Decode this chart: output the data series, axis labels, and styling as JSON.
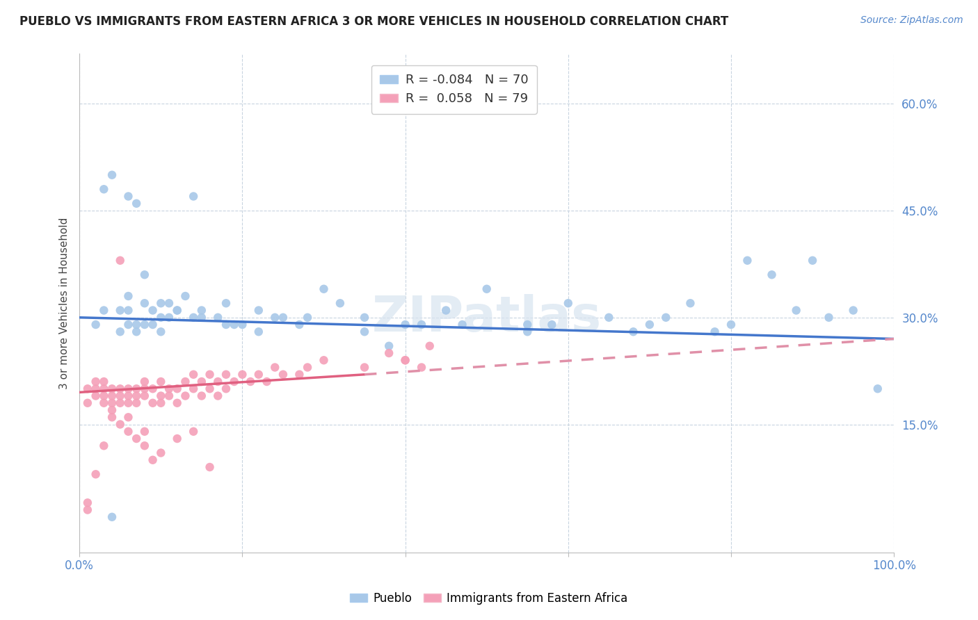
{
  "title": "PUEBLO VS IMMIGRANTS FROM EASTERN AFRICA 3 OR MORE VEHICLES IN HOUSEHOLD CORRELATION CHART",
  "source": "Source: ZipAtlas.com",
  "ylabel": "3 or more Vehicles in Household",
  "ytick_vals": [
    0.15,
    0.3,
    0.45,
    0.6
  ],
  "ytick_labels": [
    "15.0%",
    "30.0%",
    "45.0%",
    "60.0%"
  ],
  "pueblo_color": "#a8c8e8",
  "immigrant_color": "#f4a0b8",
  "pueblo_line_color": "#4477cc",
  "immigrant_line_solid_color": "#e06080",
  "immigrant_line_dash_color": "#e090a8",
  "watermark_text": "ZIPatlas",
  "pueblo_legend": "R = -0.084   N = 70",
  "immigrant_legend": "R =  0.058   N = 79",
  "pueblo_scatter_x": [
    0.02,
    0.04,
    0.05,
    0.05,
    0.06,
    0.06,
    0.07,
    0.07,
    0.08,
    0.08,
    0.09,
    0.09,
    0.1,
    0.1,
    0.11,
    0.11,
    0.12,
    0.13,
    0.14,
    0.15,
    0.15,
    0.17,
    0.18,
    0.19,
    0.2,
    0.22,
    0.22,
    0.24,
    0.25,
    0.27,
    0.28,
    0.3,
    0.32,
    0.35,
    0.38,
    0.4,
    0.42,
    0.45,
    0.5,
    0.55,
    0.58,
    0.6,
    0.65,
    0.68,
    0.7,
    0.72,
    0.75,
    0.78,
    0.8,
    0.82,
    0.85,
    0.88,
    0.9,
    0.92,
    0.95,
    0.98,
    0.04,
    0.06,
    0.47,
    0.1,
    0.12,
    0.18,
    0.03,
    0.07,
    0.14,
    0.55,
    0.03,
    0.06,
    0.08,
    0.35
  ],
  "pueblo_scatter_y": [
    0.29,
    0.5,
    0.28,
    0.31,
    0.29,
    0.31,
    0.28,
    0.29,
    0.29,
    0.32,
    0.29,
    0.31,
    0.3,
    0.32,
    0.3,
    0.32,
    0.31,
    0.33,
    0.3,
    0.3,
    0.31,
    0.3,
    0.29,
    0.29,
    0.29,
    0.31,
    0.28,
    0.3,
    0.3,
    0.29,
    0.3,
    0.34,
    0.32,
    0.3,
    0.26,
    0.29,
    0.29,
    0.31,
    0.34,
    0.28,
    0.29,
    0.32,
    0.3,
    0.28,
    0.29,
    0.3,
    0.32,
    0.28,
    0.29,
    0.38,
    0.36,
    0.31,
    0.38,
    0.3,
    0.31,
    0.2,
    0.02,
    0.47,
    0.29,
    0.28,
    0.31,
    0.32,
    0.48,
    0.46,
    0.47,
    0.29,
    0.31,
    0.33,
    0.36,
    0.28
  ],
  "immigrant_scatter_x": [
    0.01,
    0.01,
    0.02,
    0.02,
    0.02,
    0.03,
    0.03,
    0.03,
    0.03,
    0.04,
    0.04,
    0.04,
    0.04,
    0.05,
    0.05,
    0.05,
    0.05,
    0.06,
    0.06,
    0.06,
    0.07,
    0.07,
    0.07,
    0.08,
    0.08,
    0.08,
    0.09,
    0.09,
    0.1,
    0.1,
    0.1,
    0.11,
    0.11,
    0.12,
    0.12,
    0.13,
    0.13,
    0.14,
    0.14,
    0.15,
    0.15,
    0.16,
    0.16,
    0.17,
    0.17,
    0.18,
    0.18,
    0.19,
    0.2,
    0.21,
    0.22,
    0.23,
    0.24,
    0.25,
    0.27,
    0.28,
    0.3,
    0.35,
    0.4,
    0.42,
    0.02,
    0.03,
    0.05,
    0.06,
    0.07,
    0.08,
    0.09,
    0.1,
    0.12,
    0.14,
    0.16,
    0.38,
    0.4,
    0.43,
    0.01,
    0.01,
    0.04,
    0.06,
    0.08
  ],
  "immigrant_scatter_y": [
    0.2,
    0.18,
    0.2,
    0.19,
    0.21,
    0.18,
    0.2,
    0.19,
    0.21,
    0.17,
    0.19,
    0.2,
    0.18,
    0.18,
    0.2,
    0.19,
    0.38,
    0.19,
    0.2,
    0.18,
    0.19,
    0.2,
    0.18,
    0.2,
    0.19,
    0.21,
    0.18,
    0.2,
    0.19,
    0.21,
    0.18,
    0.2,
    0.19,
    0.2,
    0.18,
    0.21,
    0.19,
    0.2,
    0.22,
    0.21,
    0.19,
    0.22,
    0.2,
    0.21,
    0.19,
    0.22,
    0.2,
    0.21,
    0.22,
    0.21,
    0.22,
    0.21,
    0.23,
    0.22,
    0.22,
    0.23,
    0.24,
    0.23,
    0.24,
    0.23,
    0.08,
    0.12,
    0.15,
    0.16,
    0.13,
    0.14,
    0.1,
    0.11,
    0.13,
    0.14,
    0.09,
    0.25,
    0.24,
    0.26,
    0.04,
    0.03,
    0.16,
    0.14,
    0.12
  ],
  "pueblo_trend_x0": 0.0,
  "pueblo_trend_x1": 1.0,
  "pueblo_trend_y0": 0.3,
  "pueblo_trend_y1": 0.27,
  "immigrant_trend_solid_x0": 0.0,
  "immigrant_trend_solid_x1": 0.35,
  "immigrant_trend_solid_y0": 0.195,
  "immigrant_trend_solid_y1": 0.22,
  "immigrant_trend_dash_x0": 0.35,
  "immigrant_trend_dash_x1": 1.0,
  "immigrant_trend_dash_y0": 0.22,
  "immigrant_trend_dash_y1": 0.27,
  "xlim": [
    0.0,
    1.0
  ],
  "ylim": [
    -0.03,
    0.67
  ]
}
